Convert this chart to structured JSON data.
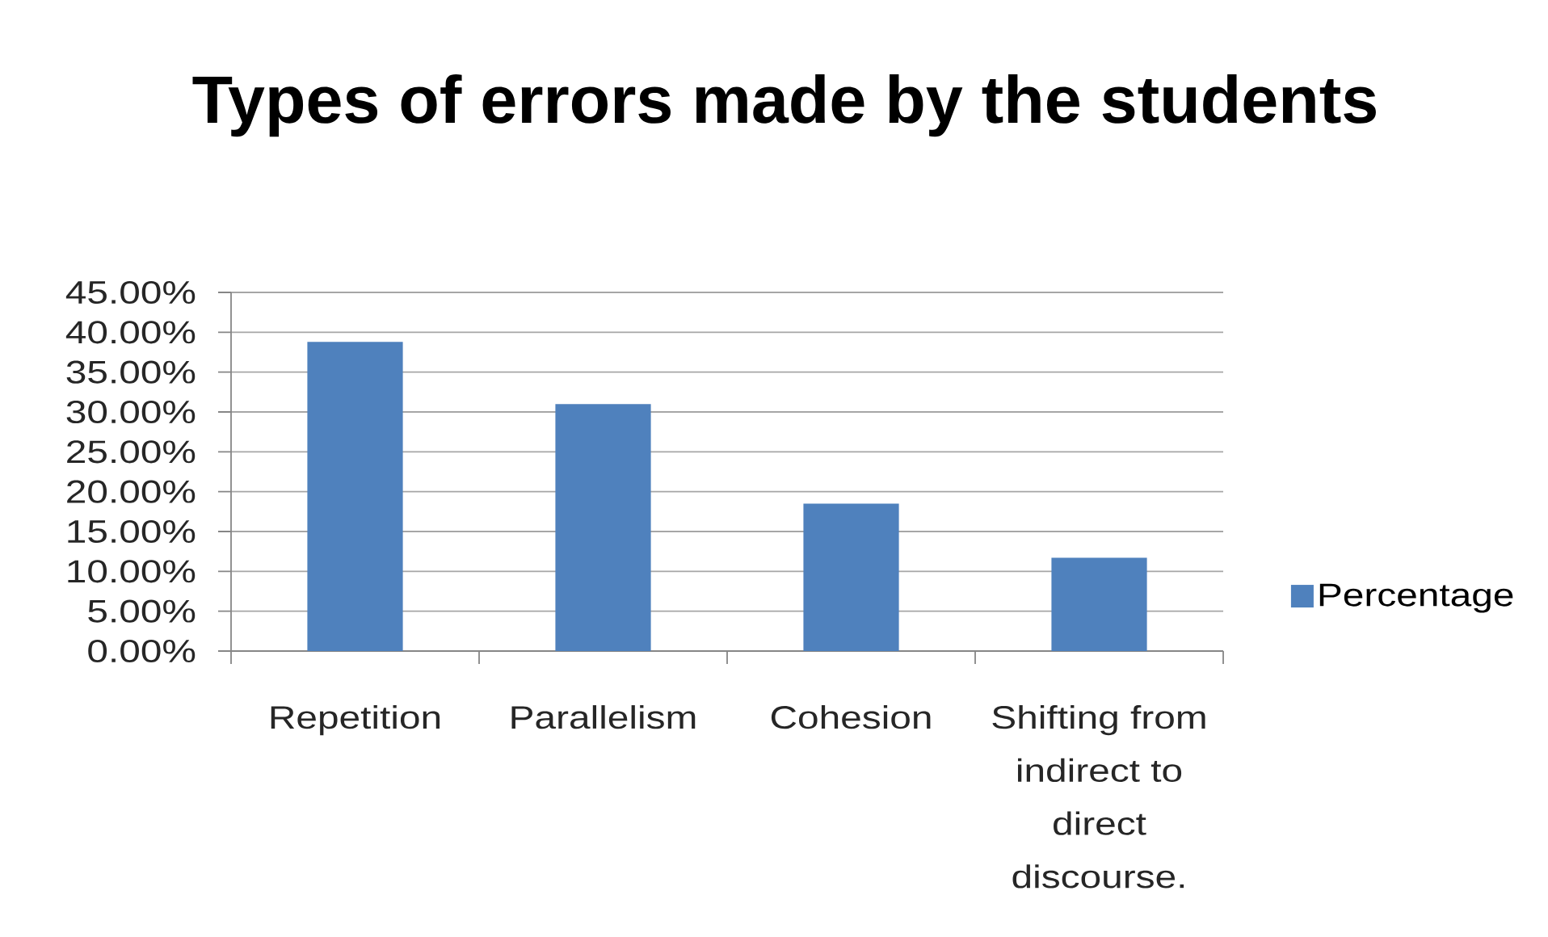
{
  "chart_data": {
    "type": "bar",
    "title": "Types of errors made by the students",
    "categories": [
      "Repetition",
      "Parallelism",
      "Cohesion",
      "Shifting from indirect to direct discourse."
    ],
    "series": [
      {
        "name": "Percentage",
        "color": "#4f81bd",
        "values": [
          38.8,
          31.0,
          18.5,
          11.7
        ]
      }
    ],
    "ylim": [
      0,
      45
    ],
    "yticks": [
      {
        "value": 0,
        "label": "0.00%"
      },
      {
        "value": 5,
        "label": "5.00%"
      },
      {
        "value": 10,
        "label": "10.00%"
      },
      {
        "value": 15,
        "label": "15.00%"
      },
      {
        "value": 20,
        "label": "20.00%"
      },
      {
        "value": 25,
        "label": "25.00%"
      },
      {
        "value": 30,
        "label": "30.00%"
      },
      {
        "value": 35,
        "label": "35.00%"
      },
      {
        "value": 40,
        "label": "40.00%"
      },
      {
        "value": 45,
        "label": "45.00%"
      }
    ],
    "grid": "y",
    "legend": "right"
  }
}
